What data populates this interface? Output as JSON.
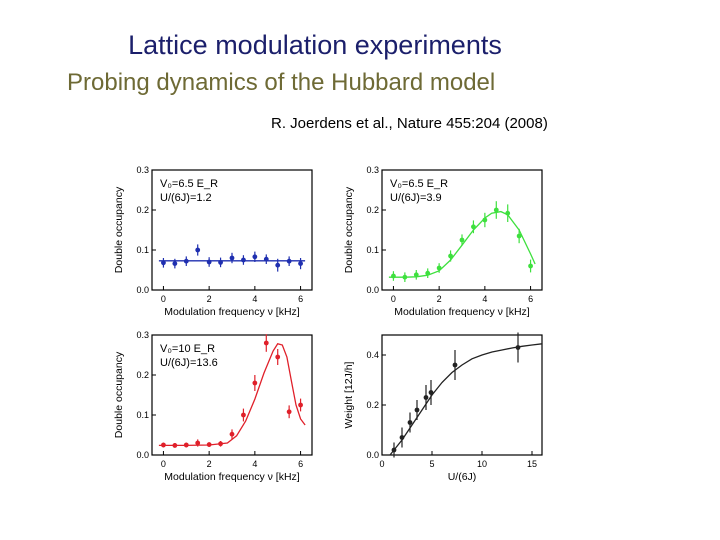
{
  "slide": {
    "title": "Lattice modulation experiments",
    "subtitle": "Probing dynamics of the Hubbard model",
    "citation": "R. Joerdens et al., Nature 455:204 (2008)"
  },
  "colors": {
    "title": "#1b1f6b",
    "subtitle": "#6e6a35",
    "panel_a": "#1f2fb0",
    "panel_b": "#3ee03e",
    "panel_c": "#e0202a",
    "panel_d": "#222222"
  },
  "chart_data": [
    {
      "id": "panel-a",
      "type": "scatter",
      "title": "",
      "annotation": [
        "V₀=6.5 E_R",
        "U/(6J)=1.2"
      ],
      "xlabel": "Modulation frequency ν [kHz]",
      "ylabel": "Double occupancy",
      "xlim": [
        -0.5,
        6.5
      ],
      "ylim": [
        0,
        0.3
      ],
      "xticks": [
        0,
        2,
        4,
        6
      ],
      "yticks": [
        0.0,
        0.1,
        0.2,
        0.3
      ],
      "x": [
        0.0,
        0.5,
        1.0,
        1.5,
        2.0,
        2.5,
        3.0,
        3.5,
        4.0,
        4.5,
        5.0,
        5.5,
        6.0
      ],
      "y": [
        0.068,
        0.066,
        0.072,
        0.1,
        0.07,
        0.069,
        0.08,
        0.075,
        0.083,
        0.077,
        0.062,
        0.072,
        0.066
      ],
      "yerr": [
        0.012,
        0.012,
        0.012,
        0.014,
        0.012,
        0.012,
        0.013,
        0.012,
        0.013,
        0.012,
        0.016,
        0.012,
        0.014
      ],
      "fit": {
        "x": [
          -0.2,
          6.2
        ],
        "y": [
          0.073,
          0.073
        ]
      },
      "color": "#1f2fb0"
    },
    {
      "id": "panel-b",
      "type": "scatter",
      "title": "",
      "annotation": [
        "V₀=6.5 E_R",
        "U/(6J)=3.9"
      ],
      "xlabel": "Modulation frequency ν [kHz]",
      "ylabel": "Double occupancy",
      "xlim": [
        -0.5,
        6.5
      ],
      "ylim": [
        0,
        0.3
      ],
      "xticks": [
        0,
        2,
        4,
        6
      ],
      "yticks": [
        0.0,
        0.1,
        0.2,
        0.3
      ],
      "x": [
        0.0,
        0.5,
        1.0,
        1.5,
        2.0,
        2.5,
        3.0,
        3.5,
        4.0,
        4.5,
        5.0,
        5.5,
        6.0
      ],
      "y": [
        0.035,
        0.032,
        0.038,
        0.042,
        0.055,
        0.085,
        0.125,
        0.158,
        0.175,
        0.2,
        0.192,
        0.135,
        0.06
      ],
      "yerr": [
        0.012,
        0.012,
        0.012,
        0.012,
        0.012,
        0.014,
        0.014,
        0.016,
        0.018,
        0.022,
        0.022,
        0.018,
        0.016
      ],
      "fit": {
        "x": [
          -0.2,
          0.5,
          1.0,
          1.5,
          2.0,
          2.5,
          3.0,
          3.5,
          4.0,
          4.3,
          4.7,
          5.0,
          5.5,
          6.0,
          6.2
        ],
        "y": [
          0.032,
          0.032,
          0.033,
          0.037,
          0.048,
          0.075,
          0.112,
          0.15,
          0.18,
          0.192,
          0.196,
          0.188,
          0.15,
          0.09,
          0.065
        ]
      },
      "color": "#3ee03e"
    },
    {
      "id": "panel-c",
      "type": "scatter",
      "title": "",
      "annotation": [
        "V₀=10 E_R",
        "U/(6J)=13.6"
      ],
      "xlabel": "Modulation frequency ν [kHz]",
      "ylabel": "Double occupancy",
      "xlim": [
        -0.5,
        6.5
      ],
      "ylim": [
        0,
        0.3
      ],
      "xticks": [
        0,
        2,
        4,
        6
      ],
      "yticks": [
        0.0,
        0.1,
        0.2,
        0.3
      ],
      "x": [
        0.0,
        0.5,
        1.0,
        1.5,
        2.0,
        2.5,
        3.0,
        3.5,
        4.0,
        4.5,
        5.0,
        5.5,
        6.0
      ],
      "y": [
        0.025,
        0.024,
        0.025,
        0.03,
        0.026,
        0.028,
        0.052,
        0.1,
        0.18,
        0.28,
        0.245,
        0.108,
        0.125
      ],
      "yerr": [
        0.006,
        0.006,
        0.006,
        0.009,
        0.006,
        0.007,
        0.012,
        0.016,
        0.02,
        0.022,
        0.02,
        0.016,
        0.016
      ],
      "fit": {
        "x": [
          -0.2,
          1.0,
          2.0,
          2.8,
          3.2,
          3.6,
          4.0,
          4.4,
          4.8,
          5.0,
          5.2,
          5.4,
          5.6,
          5.8,
          6.0,
          6.2
        ],
        "y": [
          0.024,
          0.024,
          0.025,
          0.03,
          0.048,
          0.085,
          0.14,
          0.205,
          0.26,
          0.278,
          0.275,
          0.245,
          0.185,
          0.125,
          0.09,
          0.075
        ]
      },
      "color": "#e0202a"
    },
    {
      "id": "panel-d",
      "type": "scatter",
      "title": "",
      "annotation": [],
      "xlabel": "U/(6J)",
      "ylabel": "Weight [12J/h]",
      "xlim": [
        0,
        16
      ],
      "ylim": [
        0,
        0.48
      ],
      "xticks": [
        0,
        5,
        10,
        15
      ],
      "yticks": [
        0.0,
        0.2,
        0.4
      ],
      "x": [
        1.2,
        2.0,
        2.8,
        3.5,
        4.4,
        4.9,
        7.3,
        13.6
      ],
      "y": [
        0.02,
        0.07,
        0.13,
        0.18,
        0.23,
        0.25,
        0.36,
        0.43
      ],
      "yerr": [
        0.03,
        0.04,
        0.04,
        0.04,
        0.05,
        0.05,
        0.06,
        0.06
      ],
      "fit": {
        "x": [
          0.8,
          2,
          3,
          4,
          5,
          6,
          7,
          8,
          9,
          10,
          11,
          12,
          13,
          14,
          15,
          16
        ],
        "y": [
          0.0,
          0.06,
          0.12,
          0.18,
          0.24,
          0.29,
          0.33,
          0.36,
          0.385,
          0.4,
          0.412,
          0.42,
          0.428,
          0.435,
          0.44,
          0.445
        ]
      },
      "color": "#222222"
    }
  ]
}
